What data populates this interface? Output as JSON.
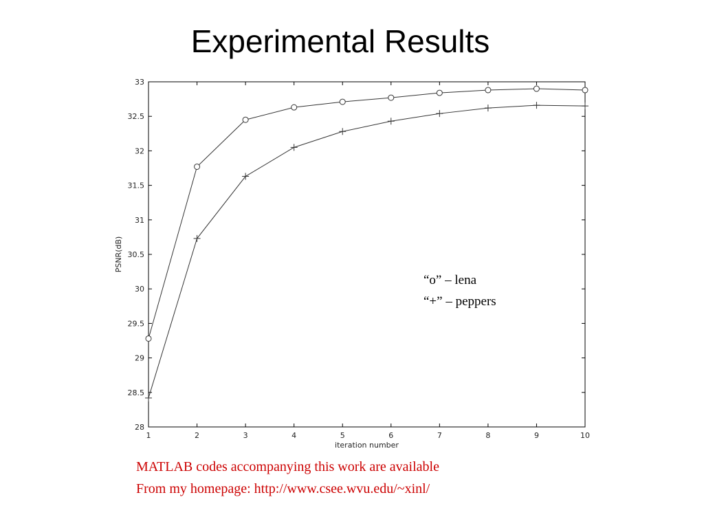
{
  "chart_data": {
    "type": "line",
    "title": "Experimental Results",
    "xlabel": "iteration number",
    "ylabel": "PSNR(dB)",
    "x": [
      1,
      2,
      3,
      4,
      5,
      6,
      7,
      8,
      9,
      10
    ],
    "xlim": [
      1,
      10
    ],
    "xticks": [
      1,
      2,
      3,
      4,
      5,
      6,
      7,
      8,
      9,
      10
    ],
    "ylim": [
      28,
      33
    ],
    "yticks": [
      28,
      28.5,
      29,
      29.5,
      30,
      30.5,
      31,
      31.5,
      32,
      32.5,
      33
    ],
    "grid": false,
    "series": [
      {
        "name": "“o” – lena",
        "marker": "circle",
        "color": "#333333",
        "values": [
          29.28,
          31.77,
          32.45,
          32.63,
          32.71,
          32.77,
          32.84,
          32.88,
          32.9,
          32.88
        ]
      },
      {
        "name": "“+” – peppers",
        "marker": "plus",
        "color": "#333333",
        "values": [
          28.42,
          30.73,
          31.63,
          32.05,
          32.28,
          32.43,
          32.54,
          32.62,
          32.66,
          32.65
        ]
      }
    ],
    "notes": [
      "MATLAB codes accompanying this work are available",
      "From my homepage: http://www.csee.wvu.edu/~xinl/"
    ],
    "notes_color": "#cc0000"
  }
}
